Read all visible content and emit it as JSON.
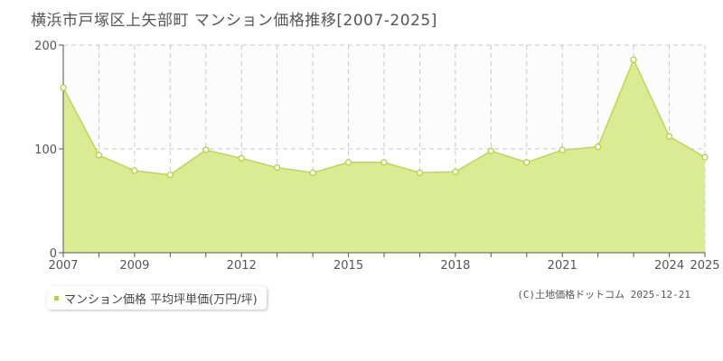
{
  "title": "横浜市戸塚区上矢部町 マンション価格推移[2007-2025]",
  "legend": {
    "label": "マンション価格 平均坪単価(万円/坪)"
  },
  "credit": "(C)土地価格ドットコム 2025-12-21",
  "colors": {
    "fill": "#dbeb93",
    "line": "#bcd94a",
    "marker": "#b5d435",
    "grid": "#c8c8c8",
    "axis": "#555555"
  },
  "chart_data": {
    "type": "area",
    "x": [
      2007,
      2008,
      2009,
      2010,
      2011,
      2012,
      2013,
      2014,
      2015,
      2016,
      2017,
      2018,
      2019,
      2020,
      2021,
      2022,
      2023,
      2024,
      2025
    ],
    "series": [
      {
        "values": [
          159,
          94,
          79,
          75,
          99,
          91,
          82,
          77,
          87,
          87,
          77,
          78,
          98,
          87,
          99,
          102,
          186,
          112,
          92
        ]
      }
    ],
    "xlim": [
      2007,
      2025
    ],
    "ylim": [
      0,
      200
    ],
    "yticks": [
      0,
      100,
      200
    ],
    "xtick_labels": [
      "2007",
      "2009",
      "2012",
      "2015",
      "2018",
      "2021",
      "2024",
      "2025"
    ],
    "grid": true
  }
}
